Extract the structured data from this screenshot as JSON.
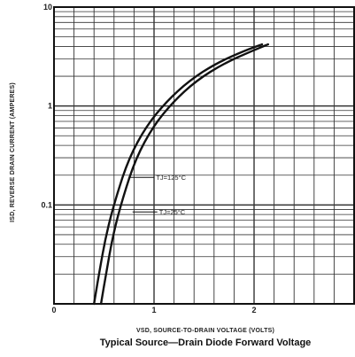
{
  "chart_data": {
    "type": "line",
    "title": "Typical Source—Drain Diode Forward Voltage",
    "xlabel": "V<sub>SD</sub>, SOURCE-TO-DRAIN VOLTAGE (VOLTS)",
    "xlabel_text": "VSD, SOURCE-TO-DRAIN VOLTAGE (VOLTS)",
    "ylabel_text": "ISD, REVERSE DRAIN CURRENT (AMPERES)",
    "xlim": [
      0,
      3
    ],
    "ylim": [
      0.01,
      10
    ],
    "y_scale": "log",
    "grid": true,
    "x_ticks": [
      {
        "value": 0,
        "label": "0"
      },
      {
        "value": 1,
        "label": "1"
      },
      {
        "value": 2,
        "label": "2"
      }
    ],
    "y_ticks": [
      {
        "value": 10,
        "label": "10"
      },
      {
        "value": 1,
        "label": "1"
      },
      {
        "value": 0.1,
        "label": "0.1"
      }
    ],
    "series": [
      {
        "name": "TJ=125°C",
        "x": [
          0.4,
          0.45,
          0.52,
          0.62,
          0.75,
          0.92,
          1.12,
          1.35,
          1.62,
          1.9,
          2.08
        ],
        "y": [
          0.01,
          0.02,
          0.05,
          0.12,
          0.3,
          0.62,
          1.1,
          1.8,
          2.7,
          3.6,
          4.2
        ]
      },
      {
        "name": "TJ=25°C",
        "x": [
          0.47,
          0.52,
          0.59,
          0.69,
          0.82,
          0.99,
          1.19,
          1.42,
          1.7,
          1.98,
          2.14
        ],
        "y": [
          0.01,
          0.02,
          0.05,
          0.12,
          0.3,
          0.62,
          1.1,
          1.8,
          2.7,
          3.6,
          4.2
        ]
      }
    ],
    "annotations": [
      {
        "text": "TJ=125°C",
        "x": 0.95,
        "y": 0.19
      },
      {
        "text": "TJ=25°C",
        "x": 0.98,
        "y": 0.085
      }
    ]
  }
}
